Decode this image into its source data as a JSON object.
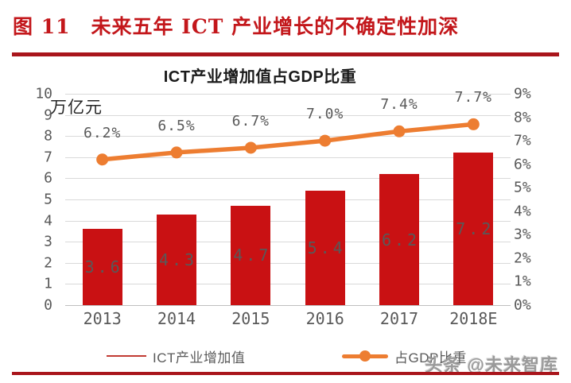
{
  "figure": {
    "caption": "图 11　未来五年 ICT 产业增长的不确定性加深"
  },
  "watermark": "头条 @未来智库",
  "colors": {
    "caption_red": "#c3171b",
    "rule_red": "#a9151b",
    "bar_red": "#c91113",
    "line_orange": "#ed7d31",
    "axis_gray": "#595959",
    "gridline_gray": "#d9d9d9"
  },
  "chart_data": {
    "type": "bar",
    "combo": "bar+line",
    "title": "ICT产业增加值占GDP比重",
    "categories": [
      "2013",
      "2014",
      "2015",
      "2016",
      "2017",
      "2018E"
    ],
    "series": [
      {
        "name": "ICT产业增加值",
        "type": "bar",
        "axis": "left",
        "unit": "万亿元",
        "values": [
          3.6,
          4.3,
          4.7,
          5.4,
          6.2,
          7.2
        ],
        "labels": [
          "3.6",
          "4.3",
          "4.7",
          "5.4",
          "6.2",
          "7.2"
        ],
        "color": "#c91113"
      },
      {
        "name": "占GDP比重",
        "type": "line",
        "axis": "right",
        "unit": "%",
        "values": [
          6.2,
          6.5,
          6.7,
          7.0,
          7.4,
          7.7
        ],
        "labels": [
          "6.2%",
          "6.5%",
          "6.7%",
          "7.0%",
          "7.4%",
          "7.7%"
        ],
        "color": "#ed7d31"
      }
    ],
    "left_axis": {
      "label": "万亿元",
      "min": 0,
      "max": 10,
      "ticks": [
        "10",
        "9",
        "8",
        "7",
        "6",
        "5",
        "4",
        "3",
        "2",
        "1",
        "0"
      ]
    },
    "right_axis": {
      "min": 0,
      "max": 9,
      "ticks": [
        "9%",
        "8%",
        "7%",
        "6%",
        "5%",
        "4%",
        "3%",
        "2%",
        "1%",
        "0%"
      ]
    },
    "grid": true,
    "legend_position": "bottom",
    "legend": [
      {
        "label": "ICT产业增加值",
        "marker": "red-line"
      },
      {
        "label": "占GDP比重",
        "marker": "orange-line-dot"
      }
    ]
  }
}
